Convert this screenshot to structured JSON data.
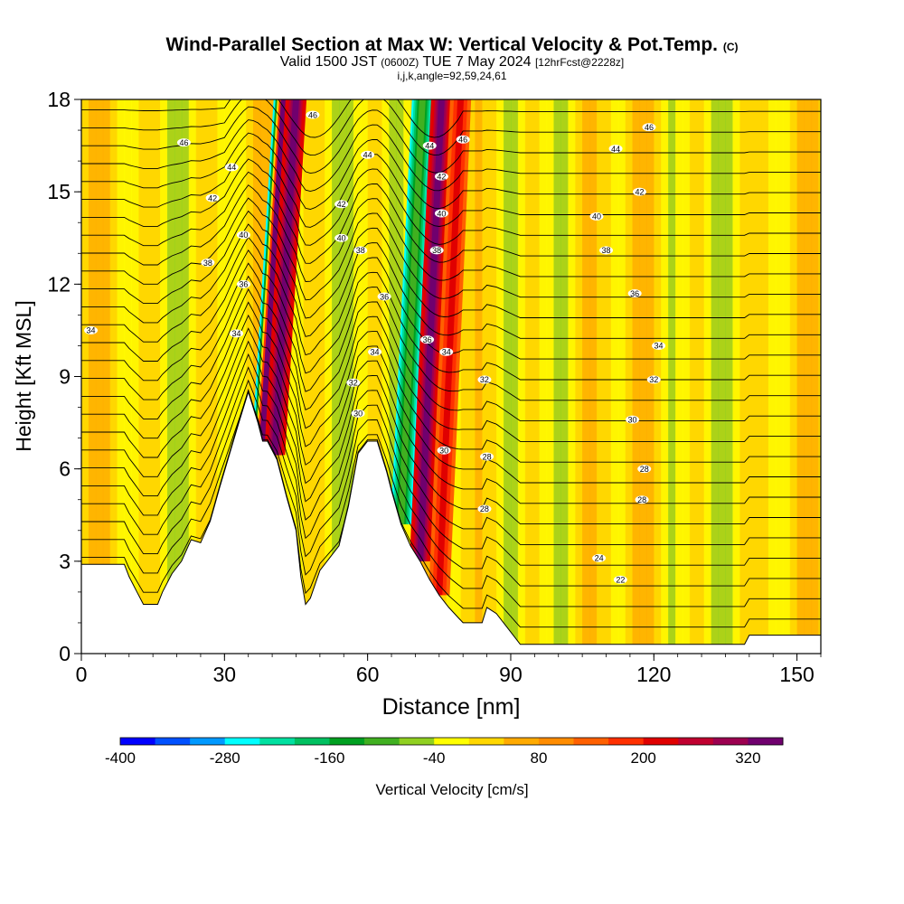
{
  "title": {
    "main": "Wind-Parallel Section at Max W: Vertical Velocity & Pot.Temp.",
    "main_suffix": "(C)",
    "valid_a": "Valid 1500 JST",
    "valid_b": "(0600Z)",
    "valid_c": "TUE 7 May 2024",
    "valid_d": "[12hrFcst@2228z]",
    "params": "i,j,k,angle=92,59,24,61"
  },
  "chart_data": {
    "type": "heatmap",
    "xlabel": "Distance [nm]",
    "ylabel": "Height [Kft MSL]",
    "xlim": [
      0,
      155
    ],
    "ylim": [
      0,
      18
    ],
    "x_ticks": [
      0,
      30,
      60,
      90,
      120,
      150
    ],
    "y_ticks": [
      0,
      3,
      6,
      9,
      12,
      15,
      18
    ],
    "colorbar": {
      "label": "Vertical Velocity [cm/s]",
      "tick_labels": [
        -400,
        -280,
        -160,
        -40,
        80,
        200,
        320
      ],
      "min": -400,
      "max": 360,
      "step": 40,
      "colors": [
        "#0000ff",
        "#0050ff",
        "#0099ff",
        "#00ffff",
        "#00e0a0",
        "#00c060",
        "#00a020",
        "#40b020",
        "#90d020",
        "#ffff00",
        "#ffd700",
        "#ffaa00",
        "#ff8c00",
        "#ff6000",
        "#ff3000",
        "#e00000",
        "#c00030",
        "#9c0050",
        "#70006e"
      ]
    },
    "velocity_bands": [
      {
        "x": 38,
        "w_low": -280,
        "w_high": 320
      },
      {
        "x": 40.5,
        "w_low": 200,
        "w_high": 320
      },
      {
        "x": 67,
        "w_low": -280,
        "w_high": -120
      },
      {
        "x": 71,
        "w_low": 200,
        "w_high": 320
      },
      {
        "x": 75,
        "w_low": 120,
        "w_high": 200
      }
    ],
    "terrain": [
      [
        0,
        2.9
      ],
      [
        5,
        2.9
      ],
      [
        9,
        2.9
      ],
      [
        10,
        2.5
      ],
      [
        12,
        1.9
      ],
      [
        13,
        1.6
      ],
      [
        16,
        1.6
      ],
      [
        17,
        2.0
      ],
      [
        19,
        2.6
      ],
      [
        21,
        3.0
      ],
      [
        23,
        3.7
      ],
      [
        25,
        3.6
      ],
      [
        27,
        4.3
      ],
      [
        29,
        5.4
      ],
      [
        33,
        7.5
      ],
      [
        35,
        8.5
      ],
      [
        37,
        7.5
      ],
      [
        38,
        6.9
      ],
      [
        39,
        6.9
      ],
      [
        41,
        6.3
      ],
      [
        43,
        5.1
      ],
      [
        45,
        4.0
      ],
      [
        46,
        2.5
      ],
      [
        47,
        1.6
      ],
      [
        48,
        1.8
      ],
      [
        50,
        2.7
      ],
      [
        52,
        3.1
      ],
      [
        54,
        3.5
      ],
      [
        56,
        4.8
      ],
      [
        58,
        6.5
      ],
      [
        60,
        6.9
      ],
      [
        62,
        6.9
      ],
      [
        64,
        5.9
      ],
      [
        65,
        5.3
      ],
      [
        67,
        4.2
      ],
      [
        69,
        3.5
      ],
      [
        71,
        3.0
      ],
      [
        73,
        2.4
      ],
      [
        75,
        1.9
      ],
      [
        77,
        1.5
      ],
      [
        80,
        1.0
      ],
      [
        84,
        1.0
      ],
      [
        85,
        1.5
      ],
      [
        87,
        1.3
      ],
      [
        90,
        0.7
      ],
      [
        92,
        0.3
      ],
      [
        139,
        0.3
      ],
      [
        140,
        0.6
      ],
      [
        155,
        0.6
      ]
    ],
    "isentrope_labels": [
      {
        "text": "46",
        "x": 21.5,
        "y": 16.6
      },
      {
        "text": "46",
        "x": 48.5,
        "y": 17.5
      },
      {
        "text": "46",
        "x": 80,
        "y": 16.7
      },
      {
        "text": "46",
        "x": 119,
        "y": 17.1
      },
      {
        "text": "44",
        "x": 31.5,
        "y": 15.8
      },
      {
        "text": "44",
        "x": 60,
        "y": 16.2
      },
      {
        "text": "44",
        "x": 73,
        "y": 16.5
      },
      {
        "text": "44",
        "x": 112,
        "y": 16.4
      },
      {
        "text": "42",
        "x": 27.5,
        "y": 14.8
      },
      {
        "text": "42",
        "x": 54.5,
        "y": 14.6
      },
      {
        "text": "42",
        "x": 75.5,
        "y": 15.5
      },
      {
        "text": "42",
        "x": 117,
        "y": 15.0
      },
      {
        "text": "40",
        "x": 34,
        "y": 13.6
      },
      {
        "text": "40",
        "x": 54.5,
        "y": 13.5
      },
      {
        "text": "40",
        "x": 75.5,
        "y": 14.3
      },
      {
        "text": "40",
        "x": 108,
        "y": 14.2
      },
      {
        "text": "38",
        "x": 26.5,
        "y": 12.7
      },
      {
        "text": "38",
        "x": 58.5,
        "y": 13.1
      },
      {
        "text": "38",
        "x": 74.5,
        "y": 13.1
      },
      {
        "text": "38",
        "x": 110,
        "y": 13.1
      },
      {
        "text": "36",
        "x": 34,
        "y": 12.0
      },
      {
        "text": "36",
        "x": 63.5,
        "y": 11.6
      },
      {
        "text": "36",
        "x": 72.5,
        "y": 10.2
      },
      {
        "text": "36",
        "x": 116,
        "y": 11.7
      },
      {
        "text": "34",
        "x": 2,
        "y": 10.5
      },
      {
        "text": "34",
        "x": 32.5,
        "y": 10.4
      },
      {
        "text": "34",
        "x": 61.5,
        "y": 9.8
      },
      {
        "text": "34",
        "x": 76.5,
        "y": 9.8
      },
      {
        "text": "34",
        "x": 121,
        "y": 10.0
      },
      {
        "text": "32",
        "x": 57,
        "y": 8.8
      },
      {
        "text": "32",
        "x": 84.5,
        "y": 8.9
      },
      {
        "text": "32",
        "x": 120,
        "y": 8.9
      },
      {
        "text": "30",
        "x": 58,
        "y": 7.8
      },
      {
        "text": "30",
        "x": 76,
        "y": 6.6
      },
      {
        "text": "30",
        "x": 115.5,
        "y": 7.6
      },
      {
        "text": "28",
        "x": 85,
        "y": 6.4
      },
      {
        "text": "28",
        "x": 118,
        "y": 6.0
      },
      {
        "text": "28",
        "x": 84.5,
        "y": 4.7
      },
      {
        "text": "28",
        "x": 117.5,
        "y": 5.0
      },
      {
        "text": "24",
        "x": 108.5,
        "y": 3.1
      },
      {
        "text": "22",
        "x": 113,
        "y": 2.4
      }
    ]
  }
}
